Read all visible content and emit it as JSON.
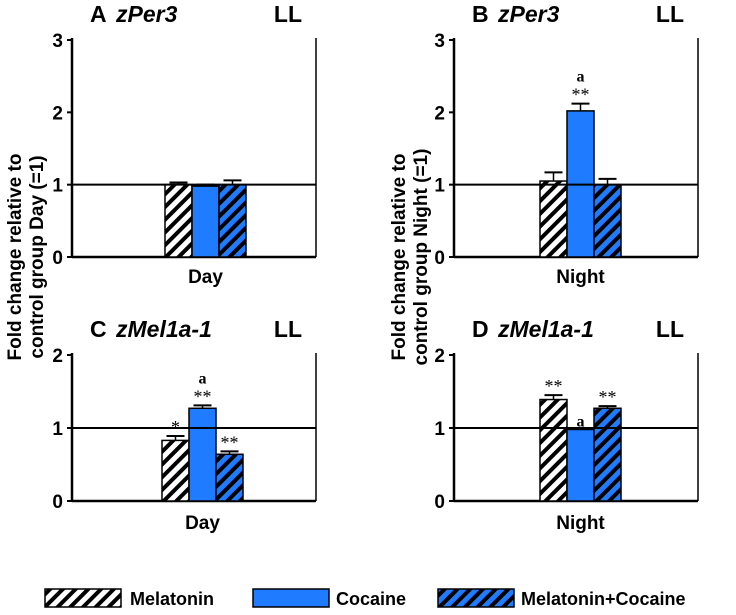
{
  "y_axis_labels": {
    "day": [
      "Fold change relative to",
      "control group Day (=1)"
    ],
    "night": [
      "Fold change relative to",
      "control group Night (=1)"
    ]
  },
  "legend": [
    {
      "label": "Melatonin",
      "pattern": "hatch-white"
    },
    {
      "label": "Cocaine",
      "pattern": "solid-blue"
    },
    {
      "label": "Melatonin+Cocaine",
      "pattern": "hatch-blue"
    }
  ],
  "colors": {
    "cocaine": "#1f7bff",
    "hatch_blue": "#1f7bff",
    "axis": "#000000"
  },
  "chart_data": [
    {
      "type": "bar",
      "panel": "A",
      "gene": "zPer3",
      "condition": "LL",
      "categories": [
        "Day"
      ],
      "xlabel": "Day",
      "ylim": [
        0,
        3
      ],
      "yticks": [
        0,
        1,
        2,
        3
      ],
      "reference_line": 1,
      "series": [
        {
          "name": "Melatonin",
          "values": [
            1.0
          ],
          "error": [
            0.03
          ],
          "sig": "",
          "letter": ""
        },
        {
          "name": "Cocaine",
          "values": [
            0.98
          ],
          "error": [
            0.02
          ],
          "sig": "",
          "letter": ""
        },
        {
          "name": "Melatonin+Cocaine",
          "values": [
            1.0
          ],
          "error": [
            0.06
          ],
          "sig": "",
          "letter": ""
        }
      ]
    },
    {
      "type": "bar",
      "panel": "B",
      "gene": "zPer3",
      "condition": "LL",
      "categories": [
        "Night"
      ],
      "xlabel": "Night",
      "ylim": [
        0,
        3
      ],
      "yticks": [
        0,
        1,
        2,
        3
      ],
      "reference_line": 1,
      "series": [
        {
          "name": "Melatonin",
          "values": [
            1.05
          ],
          "error": [
            0.12
          ],
          "sig": "",
          "letter": ""
        },
        {
          "name": "Cocaine",
          "values": [
            2.02
          ],
          "error": [
            0.1
          ],
          "sig": "**",
          "letter": "a"
        },
        {
          "name": "Melatonin+Cocaine",
          "values": [
            1.0
          ],
          "error": [
            0.08
          ],
          "sig": "",
          "letter": ""
        }
      ]
    },
    {
      "type": "bar",
      "panel": "C",
      "gene": "zMel1a-1",
      "condition": "LL",
      "categories": [
        "Day"
      ],
      "xlabel": "Day",
      "ylim": [
        0,
        2
      ],
      "yticks": [
        0,
        1,
        2
      ],
      "reference_line": 1,
      "series": [
        {
          "name": "Melatonin",
          "values": [
            0.83
          ],
          "error": [
            0.06
          ],
          "sig": "*",
          "letter": ""
        },
        {
          "name": "Cocaine",
          "values": [
            1.27
          ],
          "error": [
            0.04
          ],
          "sig": "**",
          "letter": "a"
        },
        {
          "name": "Melatonin+Cocaine",
          "values": [
            0.64
          ],
          "error": [
            0.04
          ],
          "sig": "**",
          "letter": ""
        }
      ]
    },
    {
      "type": "bar",
      "panel": "D",
      "gene": "zMel1a-1",
      "condition": "LL",
      "categories": [
        "Night"
      ],
      "xlabel": "Night",
      "ylim": [
        0,
        2
      ],
      "yticks": [
        0,
        1,
        2
      ],
      "reference_line": 1,
      "series": [
        {
          "name": "Melatonin",
          "values": [
            1.39
          ],
          "error": [
            0.06
          ],
          "sig": "**",
          "letter": ""
        },
        {
          "name": "Cocaine",
          "values": [
            0.98
          ],
          "error": [
            0.0
          ],
          "sig": "",
          "letter": "a"
        },
        {
          "name": "Melatonin+Cocaine",
          "values": [
            1.27
          ],
          "error": [
            0.03
          ],
          "sig": "**",
          "letter": ""
        }
      ]
    }
  ]
}
